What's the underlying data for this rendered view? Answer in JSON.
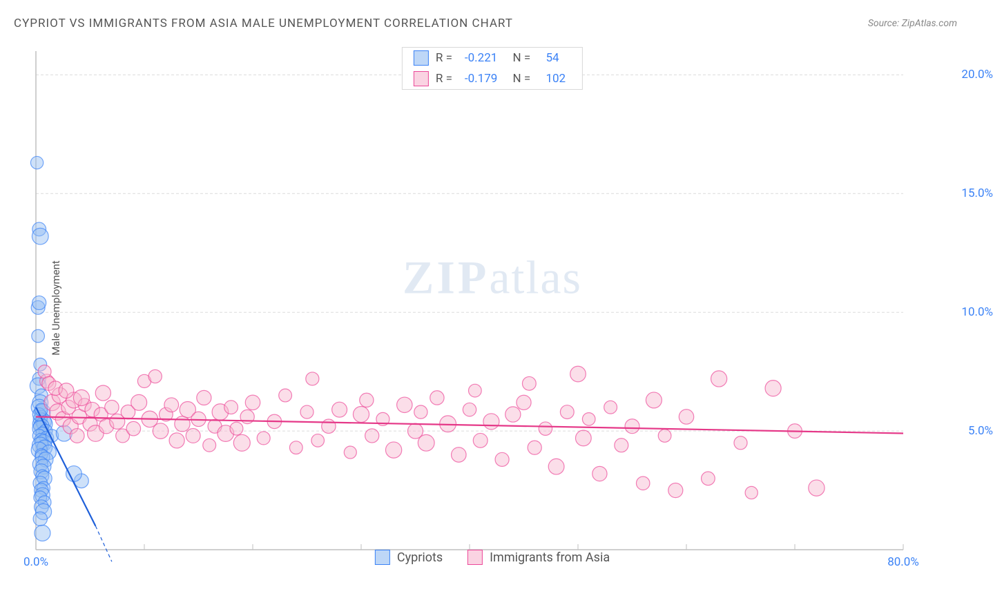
{
  "title": "CYPRIOT VS IMMIGRANTS FROM ASIA MALE UNEMPLOYMENT CORRELATION CHART",
  "source_label": "Source: ZipAtlas.com",
  "y_axis_label": "Male Unemployment",
  "watermark": {
    "bold": "ZIP",
    "light": "atlas"
  },
  "chart": {
    "type": "scatter",
    "background_color": "#ffffff",
    "grid_color": "#dcdcdc",
    "axis_color": "#bfbfbf",
    "xlim": [
      0,
      80
    ],
    "ylim": [
      0,
      21
    ],
    "x_ticks": [
      0,
      10,
      20,
      30,
      40,
      50,
      60,
      70,
      80
    ],
    "x_tick_labels": {
      "0": "0.0%",
      "80": "80.0%"
    },
    "y_ticks": [
      5,
      10,
      15,
      20
    ],
    "y_tick_labels": {
      "5": "5.0%",
      "10": "10.0%",
      "15": "15.0%",
      "20": "20.0%"
    },
    "marker_radius": 10,
    "marker_opacity": 0.45,
    "marker_stroke_width": 1.2,
    "trend_line_width": 2.2
  },
  "series": [
    {
      "name": "Cypriots",
      "fill_color": "#93bdf2",
      "stroke_color": "#3b82f6",
      "line_color": "#1e5fd9",
      "R": "-0.221",
      "N": "54",
      "trend": {
        "x1": 0,
        "y1": 6.0,
        "x2": 5.5,
        "y2": 1.0
      },
      "trend_dash": {
        "x1": 5.5,
        "y1": 1.0,
        "x2": 7.0,
        "y2": -0.5
      },
      "points": [
        [
          0.1,
          16.3
        ],
        [
          0.3,
          13.5
        ],
        [
          0.4,
          13.2
        ],
        [
          0.2,
          10.2
        ],
        [
          0.3,
          10.4
        ],
        [
          0.2,
          9.0
        ],
        [
          0.4,
          7.8
        ],
        [
          0.3,
          7.2
        ],
        [
          0.2,
          6.9
        ],
        [
          0.5,
          6.5
        ],
        [
          0.4,
          6.2
        ],
        [
          0.3,
          6.0
        ],
        [
          0.6,
          5.8
        ],
        [
          0.5,
          5.6
        ],
        [
          0.4,
          5.5
        ],
        [
          0.7,
          5.4
        ],
        [
          0.3,
          5.3
        ],
        [
          0.8,
          5.3
        ],
        [
          0.5,
          5.2
        ],
        [
          0.4,
          5.1
        ],
        [
          0.9,
          5.0
        ],
        [
          0.6,
          4.9
        ],
        [
          0.3,
          4.8
        ],
        [
          1.0,
          4.7
        ],
        [
          0.5,
          4.6
        ],
        [
          0.7,
          4.5
        ],
        [
          0.4,
          4.4
        ],
        [
          0.8,
          4.3
        ],
        [
          0.3,
          4.2
        ],
        [
          1.2,
          4.1
        ],
        [
          0.5,
          4.0
        ],
        [
          0.6,
          3.9
        ],
        [
          0.9,
          3.8
        ],
        [
          1.5,
          4.8
        ],
        [
          2.6,
          4.9
        ],
        [
          0.4,
          3.6
        ],
        [
          0.7,
          3.5
        ],
        [
          0.5,
          3.3
        ],
        [
          0.6,
          3.1
        ],
        [
          0.8,
          3.0
        ],
        [
          0.4,
          2.8
        ],
        [
          0.7,
          2.6
        ],
        [
          0.5,
          2.5
        ],
        [
          0.6,
          2.3
        ],
        [
          0.4,
          2.2
        ],
        [
          0.8,
          2.0
        ],
        [
          0.5,
          1.8
        ],
        [
          0.7,
          1.6
        ],
        [
          0.4,
          1.3
        ],
        [
          0.6,
          0.7
        ],
        [
          4.2,
          2.9
        ],
        [
          3.5,
          3.2
        ],
        [
          0.3,
          5.7
        ],
        [
          0.5,
          5.9
        ]
      ]
    },
    {
      "name": "Immigrants from Asia",
      "fill_color": "#f7b6ce",
      "stroke_color": "#ec4899",
      "line_color": "#e53888",
      "R": "-0.179",
      "N": "102",
      "trend": {
        "x1": 0,
        "y1": 5.6,
        "x2": 80,
        "y2": 4.9
      },
      "points": [
        [
          1.0,
          7.1
        ],
        [
          1.5,
          6.2
        ],
        [
          2.0,
          5.8
        ],
        [
          2.2,
          6.5
        ],
        [
          2.5,
          5.5
        ],
        [
          3.0,
          6.0
        ],
        [
          3.2,
          5.2
        ],
        [
          3.5,
          6.3
        ],
        [
          3.8,
          4.8
        ],
        [
          4.0,
          5.6
        ],
        [
          4.5,
          6.1
        ],
        [
          5.0,
          5.3
        ],
        [
          5.2,
          5.9
        ],
        [
          5.5,
          4.9
        ],
        [
          6.0,
          5.7
        ],
        [
          6.5,
          5.2
        ],
        [
          7.0,
          6.0
        ],
        [
          7.5,
          5.4
        ],
        [
          8.0,
          4.8
        ],
        [
          8.5,
          5.8
        ],
        [
          9.0,
          5.1
        ],
        [
          9.5,
          6.2
        ],
        [
          10.0,
          7.1
        ],
        [
          10.5,
          5.5
        ],
        [
          11.0,
          7.3
        ],
        [
          11.5,
          5.0
        ],
        [
          12.0,
          5.7
        ],
        [
          12.5,
          6.1
        ],
        [
          13.0,
          4.6
        ],
        [
          13.5,
          5.3
        ],
        [
          14.0,
          5.9
        ],
        [
          14.5,
          4.8
        ],
        [
          15.0,
          5.5
        ],
        [
          15.5,
          6.4
        ],
        [
          16.0,
          4.4
        ],
        [
          16.5,
          5.2
        ],
        [
          17.0,
          5.8
        ],
        [
          17.5,
          4.9
        ],
        [
          18.0,
          6.0
        ],
        [
          18.5,
          5.1
        ],
        [
          19.0,
          4.5
        ],
        [
          19.5,
          5.6
        ],
        [
          20.0,
          6.2
        ],
        [
          21.0,
          4.7
        ],
        [
          22.0,
          5.4
        ],
        [
          23.0,
          6.5
        ],
        [
          24.0,
          4.3
        ],
        [
          25.0,
          5.8
        ],
        [
          25.5,
          7.2
        ],
        [
          26.0,
          4.6
        ],
        [
          27.0,
          5.2
        ],
        [
          28.0,
          5.9
        ],
        [
          29.0,
          4.1
        ],
        [
          30.0,
          5.7
        ],
        [
          30.5,
          6.3
        ],
        [
          31.0,
          4.8
        ],
        [
          32.0,
          5.5
        ],
        [
          33.0,
          4.2
        ],
        [
          34.0,
          6.1
        ],
        [
          35.0,
          5.0
        ],
        [
          35.5,
          5.8
        ],
        [
          36.0,
          4.5
        ],
        [
          37.0,
          6.4
        ],
        [
          38.0,
          5.3
        ],
        [
          39.0,
          4.0
        ],
        [
          40.0,
          5.9
        ],
        [
          40.5,
          6.7
        ],
        [
          41.0,
          4.6
        ],
        [
          42.0,
          5.4
        ],
        [
          43.0,
          3.8
        ],
        [
          44.0,
          5.7
        ],
        [
          45.0,
          6.2
        ],
        [
          45.5,
          7.0
        ],
        [
          46.0,
          4.3
        ],
        [
          47.0,
          5.1
        ],
        [
          48.0,
          3.5
        ],
        [
          49.0,
          5.8
        ],
        [
          50.0,
          7.4
        ],
        [
          50.5,
          4.7
        ],
        [
          51.0,
          5.5
        ],
        [
          52.0,
          3.2
        ],
        [
          53.0,
          6.0
        ],
        [
          54.0,
          4.4
        ],
        [
          55.0,
          5.2
        ],
        [
          56.0,
          2.8
        ],
        [
          57.0,
          6.3
        ],
        [
          58.0,
          4.8
        ],
        [
          59.0,
          2.5
        ],
        [
          60.0,
          5.6
        ],
        [
          62.0,
          3.0
        ],
        [
          63.0,
          7.2
        ],
        [
          65.0,
          4.5
        ],
        [
          66.0,
          2.4
        ],
        [
          68.0,
          6.8
        ],
        [
          70.0,
          5.0
        ],
        [
          72.0,
          2.6
        ],
        [
          0.8,
          7.5
        ],
        [
          1.2,
          7.0
        ],
        [
          1.8,
          6.8
        ],
        [
          2.8,
          6.7
        ],
        [
          4.2,
          6.4
        ],
        [
          6.2,
          6.6
        ]
      ]
    }
  ],
  "bottom_legend": [
    {
      "label": "Cypriots",
      "fill": "#93bdf2",
      "stroke": "#3b82f6"
    },
    {
      "label": "Immigrants from Asia",
      "fill": "#f7b6ce",
      "stroke": "#ec4899"
    }
  ]
}
